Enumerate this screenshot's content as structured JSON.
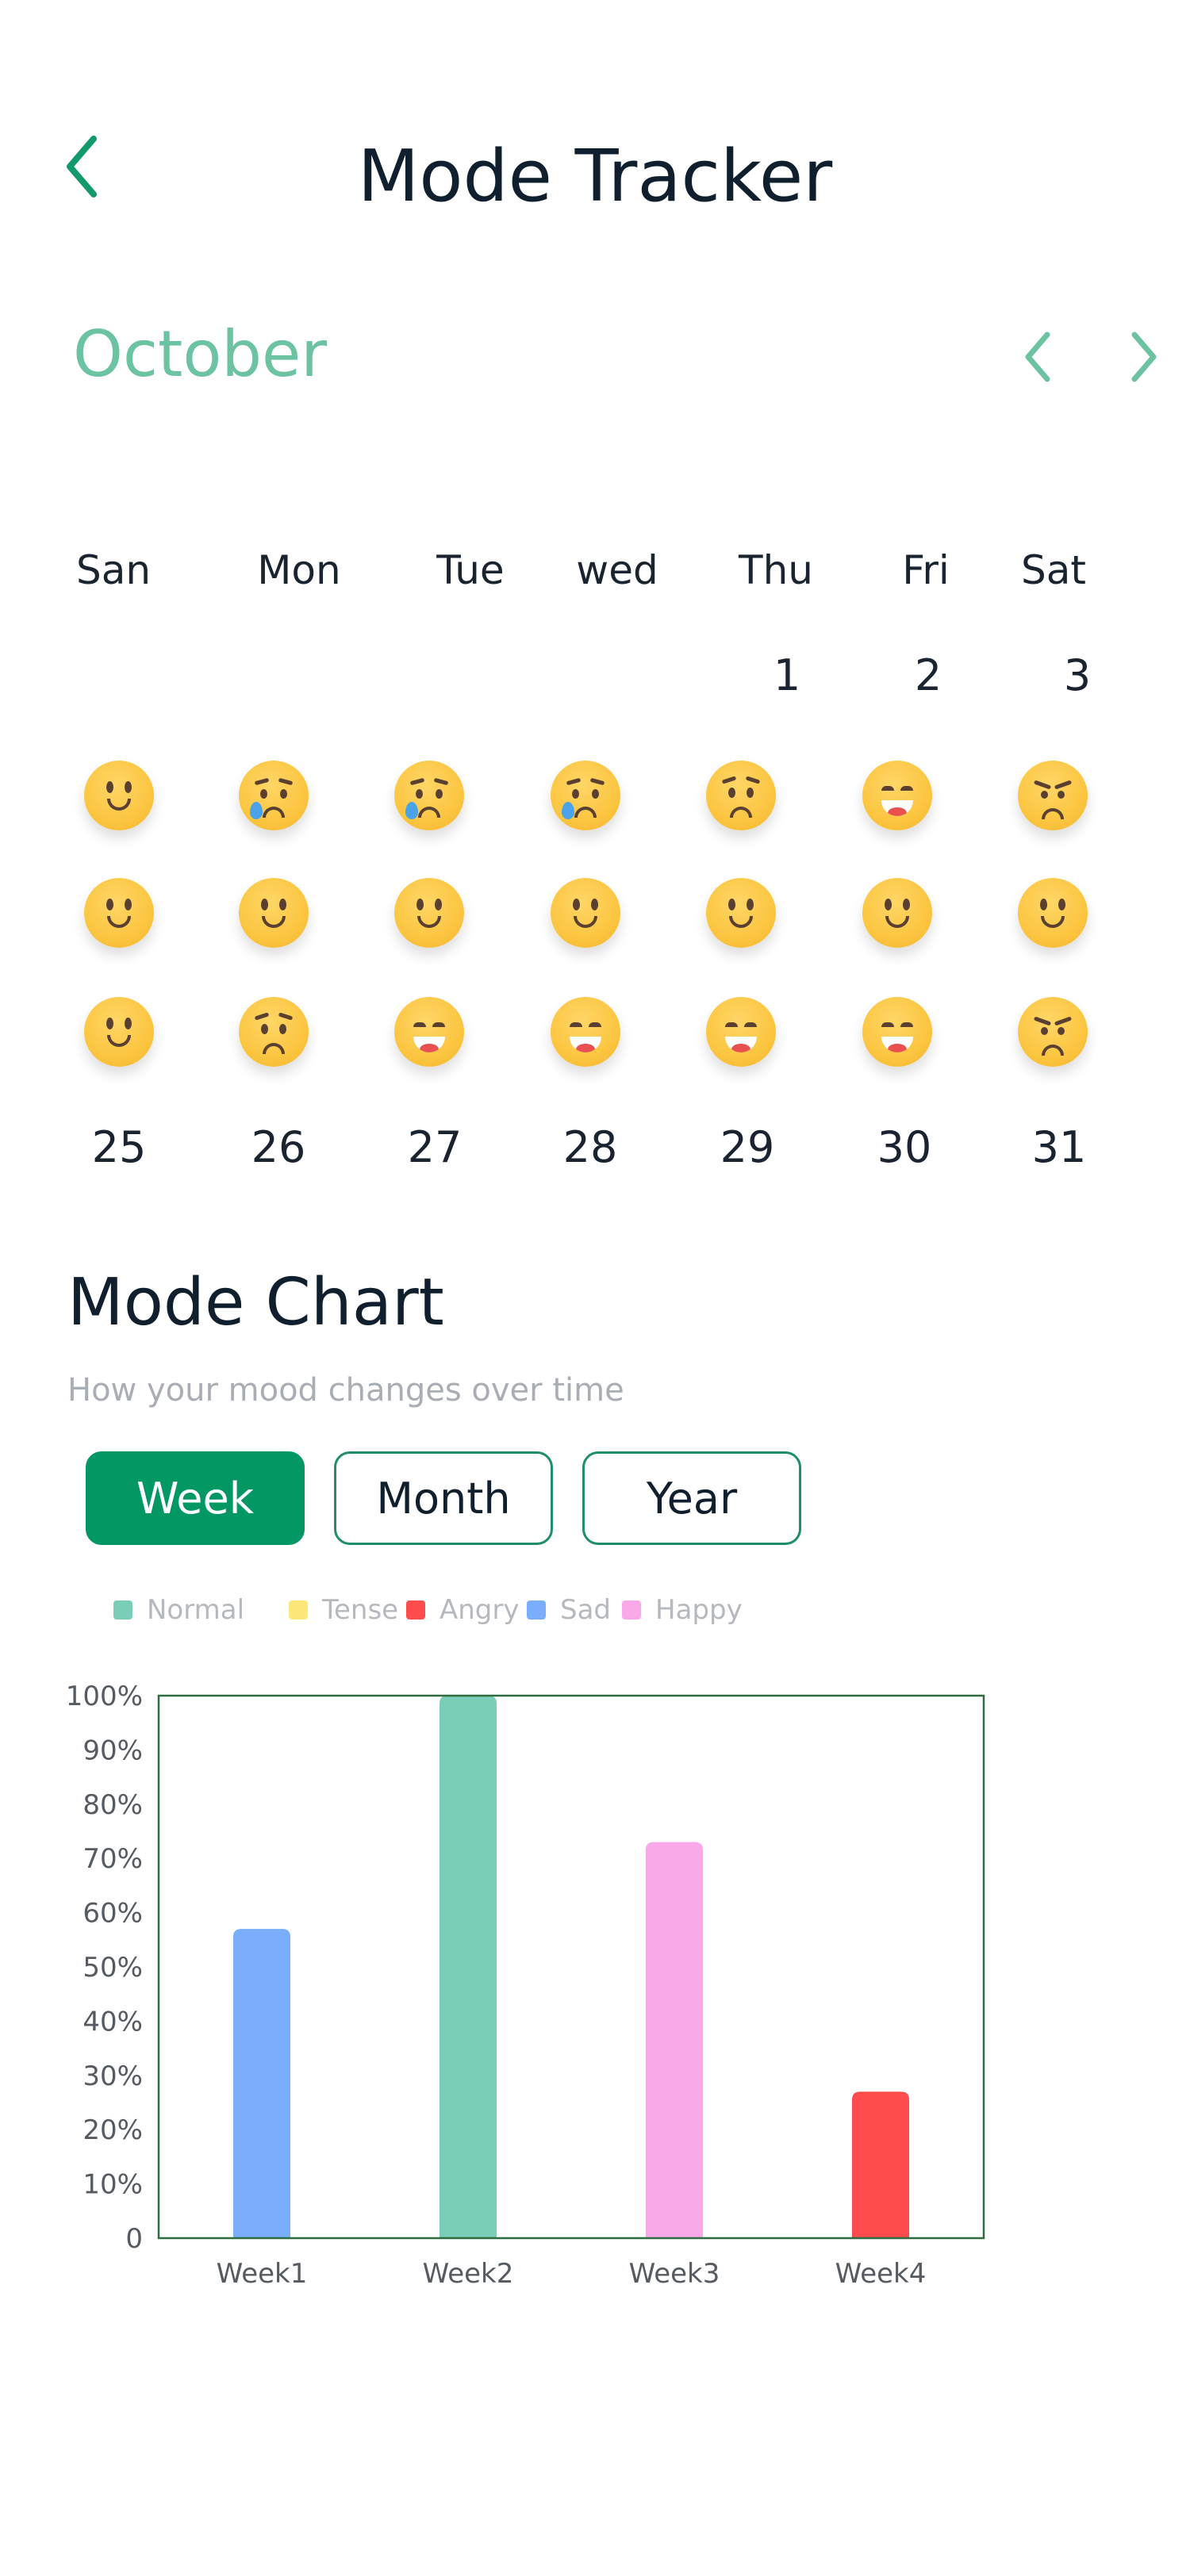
{
  "header": {
    "title": "Mode Tracker",
    "back_icon": "chevron-left-icon"
  },
  "calendar": {
    "month": "October",
    "prev_icon": "chevron-left-icon",
    "next_icon": "chevron-right-icon",
    "weekdays": [
      "San",
      "Mon",
      "Tue",
      "wed",
      "Thu",
      "Fri",
      "Sat"
    ],
    "first_row_dates": [
      "1",
      "2",
      "3"
    ],
    "last_row_dates": [
      "25",
      "26",
      "27",
      "28",
      "29",
      "30",
      "31"
    ],
    "mood_rows": [
      [
        "smile",
        "cry",
        "cry",
        "cry",
        "worried",
        "grin",
        "angry"
      ],
      [
        "smile",
        "smile",
        "smile",
        "smile",
        "smile",
        "smile",
        "smile"
      ],
      [
        "smile",
        "worried",
        "grin",
        "grin",
        "grin",
        "grin",
        "angry"
      ]
    ]
  },
  "chart_section": {
    "title": "Mode Chart",
    "subtitle": "How your mood changes over time",
    "tabs": [
      "Week",
      "Month",
      "Year"
    ],
    "active_tab": "Week",
    "legend": [
      {
        "label": "Normal",
        "color": "#7acdb6"
      },
      {
        "label": "Tense",
        "color": "#fde77a"
      },
      {
        "label": "Angry",
        "color": "#ff4d4d"
      },
      {
        "label": "Sad",
        "color": "#7aaefc"
      },
      {
        "label": "Happy",
        "color": "#f9a8e8"
      }
    ]
  },
  "chart_data": {
    "type": "bar",
    "categories": [
      "Week1",
      "Week2",
      "Week3",
      "Week4"
    ],
    "values": [
      57,
      100,
      73,
      27
    ],
    "bar_colors": [
      "#7aaefc",
      "#7acdb6",
      "#f9a8e8",
      "#ff4d4d"
    ],
    "ylim": [
      0,
      100
    ],
    "y_ticks": [
      0,
      10,
      20,
      30,
      40,
      50,
      60,
      70,
      80,
      90,
      100
    ],
    "y_tick_labels": [
      "0",
      "10%",
      "20%",
      "30%",
      "40%",
      "50%",
      "60%",
      "70%",
      "80%",
      "90%",
      "100%"
    ],
    "grid": false,
    "frame_color": "#2e6b3f"
  }
}
